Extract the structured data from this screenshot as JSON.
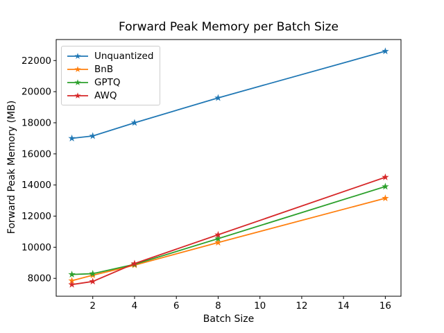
{
  "chart_data": {
    "type": "line",
    "title": "Forward Peak Memory per Batch Size",
    "xlabel": "Batch Size",
    "ylabel": "Forward Peak Memory (MB)",
    "x": [
      1,
      2,
      4,
      8,
      16
    ],
    "series": [
      {
        "name": "Unquantized",
        "color": "#1f77b4",
        "values": [
          17000,
          17150,
          18000,
          19600,
          22600
        ]
      },
      {
        "name": "BnB",
        "color": "#ff7f0e",
        "values": [
          7850,
          8200,
          8850,
          10300,
          13150
        ]
      },
      {
        "name": "GPTQ",
        "color": "#2ca02c",
        "values": [
          8250,
          8300,
          8900,
          10550,
          13900
        ]
      },
      {
        "name": "AWQ",
        "color": "#d62728",
        "values": [
          7600,
          7800,
          8950,
          10800,
          14500
        ]
      }
    ],
    "marker": "star",
    "xticks": [
      2,
      4,
      6,
      8,
      10,
      12,
      14,
      16
    ],
    "yticks": [
      8000,
      10000,
      12000,
      14000,
      16000,
      18000,
      20000,
      22000
    ],
    "xlim": [
      0.25,
      16.75
    ],
    "ylim": [
      6850,
      23350
    ],
    "grid": false,
    "legend_position": "upper left",
    "axis_color": "#000000",
    "background_color": "#ffffff"
  }
}
